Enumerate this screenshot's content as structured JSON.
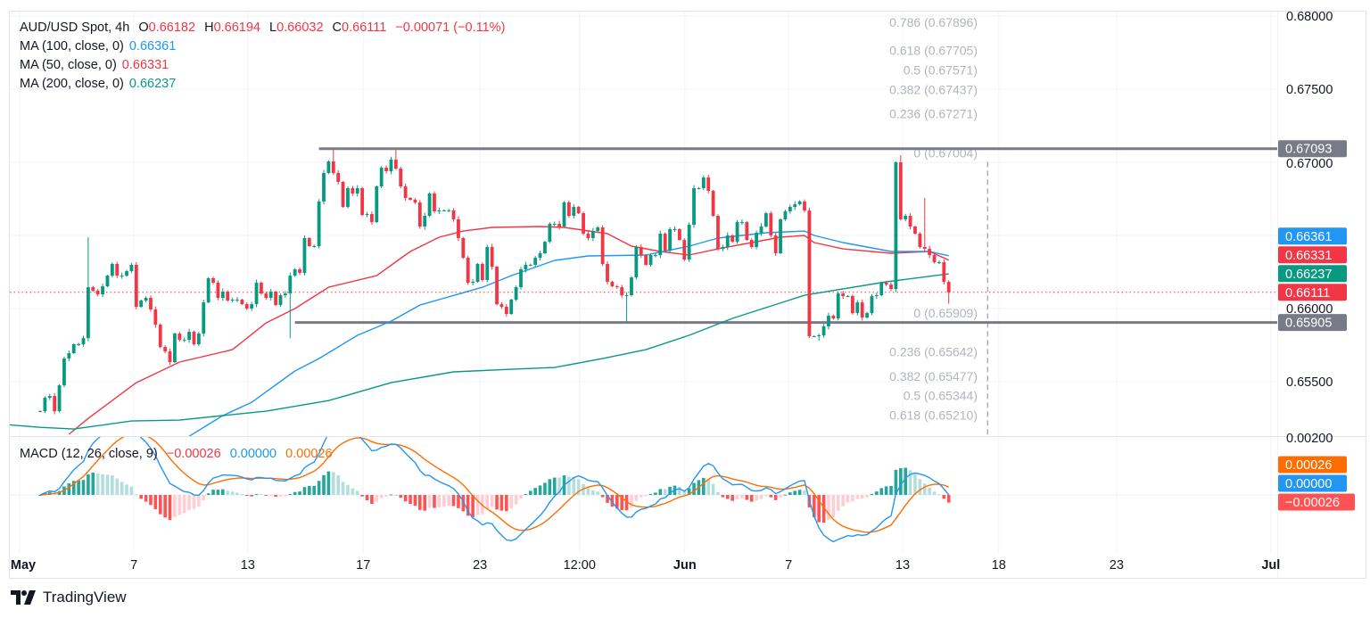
{
  "header": {
    "symbol": "AUD/USD Spot, 4h",
    "o_label": "O",
    "o": "0.66182",
    "h_label": "H",
    "h": "0.66194",
    "l_label": "L",
    "l": "0.66032",
    "c_label": "C",
    "c": "0.66111",
    "change": "−0.00071 (−0.11%)"
  },
  "indicators": [
    {
      "label": "MA (100, close, 0)",
      "value": "0.66361",
      "color": "#2196f3"
    },
    {
      "label": "MA (50, close, 0)",
      "value": "0.66331",
      "color": "#f23645"
    },
    {
      "label": "MA (200, close, 0)",
      "value": "0.66237",
      "color": "#089981"
    }
  ],
  "macd_legend": {
    "label": "MACD (12, 26, close, 9)",
    "hist": "−0.00026",
    "macd": "0.00000",
    "signal": "0.00026"
  },
  "footer": {
    "brand": "TradingView"
  },
  "colors": {
    "up": "#089981",
    "down": "#f23645",
    "ma100": "#2196f3",
    "ma50": "#f23645",
    "ma200": "#089981",
    "macd_line": "#2196f3",
    "signal_line": "#ff6d00",
    "hist_up_strong": "#26a69a",
    "hist_up_weak": "#b2dfdb",
    "hist_down_strong": "#ff5252",
    "hist_down_weak": "#ffcdd2",
    "level": "#787b86",
    "fib_text": "#b2b5be",
    "grid": "#f0f3fa",
    "border": "#e0e3eb"
  },
  "chart_data": {
    "type": "candlestick",
    "title": "AUD/USD Spot, 4h",
    "ylim": [
      0.65128,
      0.6811
    ],
    "y_ticks": [
      "0.68000",
      "0.67500",
      "0.67000",
      "0.66000",
      "0.65500"
    ],
    "y_grid": [
      0.68,
      0.675,
      0.67,
      0.665,
      0.66,
      0.655
    ],
    "x_ticks": [
      {
        "label": "May",
        "index": -4.3,
        "month": true
      },
      {
        "label": "7",
        "index": 19.5
      },
      {
        "label": "13",
        "index": 43.2
      },
      {
        "label": "17",
        "index": 67.2
      },
      {
        "label": "23",
        "index": 91.5
      },
      {
        "label": "12:00",
        "index": 112.2
      },
      {
        "label": "Jun",
        "index": 134.1,
        "month": true
      },
      {
        "label": "7",
        "index": 155.7
      },
      {
        "label": "13",
        "index": 179.4
      },
      {
        "label": "18",
        "index": 199.4
      },
      {
        "label": "23",
        "index": 223.9
      },
      {
        "label": "Jul",
        "index": 256,
        "month": true
      }
    ],
    "closes": [
      0.65298,
      0.6539,
      0.65402,
      0.65298,
      0.65475,
      0.65658,
      0.65695,
      0.65756,
      0.65756,
      0.65798,
      0.66146,
      0.66122,
      0.66097,
      0.66152,
      0.66225,
      0.66305,
      0.66225,
      0.66225,
      0.66256,
      0.66299,
      0.66012,
      0.66055,
      0.66073,
      0.65994,
      0.6589,
      0.65737,
      0.65707,
      0.65634,
      0.65829,
      0.65786,
      0.65786,
      0.65841,
      0.65756,
      0.65829,
      0.66042,
      0.66207,
      0.66177,
      0.66073,
      0.66116,
      0.66055,
      0.66061,
      0.66061,
      0.6603,
      0.66,
      0.6603,
      0.66177,
      0.66103,
      0.66073,
      0.66116,
      0.66024,
      0.66091,
      0.66103,
      0.66225,
      0.66268,
      0.66244,
      0.66482,
      0.66427,
      0.66427,
      0.66732,
      0.66927,
      0.67006,
      0.66927,
      0.66866,
      0.66695,
      0.66823,
      0.66787,
      0.66823,
      0.6664,
      0.66646,
      0.66591,
      0.66835,
      0.66963,
      0.66939,
      0.67018,
      0.66957,
      0.66835,
      0.66756,
      0.66744,
      0.66726,
      0.66561,
      0.66634,
      0.66787,
      0.66665,
      0.66671,
      0.66671,
      0.66671,
      0.6661,
      0.66482,
      0.66347,
      0.66177,
      0.66183,
      0.66305,
      0.66195,
      0.66421,
      0.66286,
      0.6603,
      0.66012,
      0.65963,
      0.66061,
      0.66146,
      0.66268,
      0.66299,
      0.66299,
      0.66347,
      0.66378,
      0.66457,
      0.66579,
      0.66579,
      0.66561,
      0.66726,
      0.66634,
      0.66695,
      0.66652,
      0.66512,
      0.66482,
      0.6653,
      0.66555,
      0.66305,
      0.66183,
      0.66152,
      0.66146,
      0.66091,
      0.66091,
      0.66213,
      0.66421,
      0.66366,
      0.66299,
      0.66366,
      0.66366,
      0.66512,
      0.66396,
      0.66543,
      0.66543,
      0.66469,
      0.66335,
      0.66573,
      0.66823,
      0.66823,
      0.66896,
      0.66805,
      0.66634,
      0.66408,
      0.66421,
      0.665,
      0.66457,
      0.66591,
      0.66591,
      0.66469,
      0.66421,
      0.66518,
      0.66561,
      0.66652,
      0.665,
      0.66378,
      0.6661,
      0.66665,
      0.66695,
      0.66713,
      0.66732,
      0.66671,
      0.65811,
      0.65811,
      0.65817,
      0.65878,
      0.65951,
      0.65933,
      0.66103,
      0.66085,
      0.66085,
      0.65969,
      0.66042,
      0.65939,
      0.65969,
      0.66085,
      0.66091,
      0.66177,
      0.66164,
      0.66134,
      0.67,
      0.6661,
      0.66634,
      0.66561,
      0.66512,
      0.66421,
      0.66408,
      0.66366,
      0.66317,
      0.66317,
      0.66183,
      0.66111
    ],
    "wick_extremes": [
      {
        "index": 10,
        "high": 0.66488
      },
      {
        "index": 52,
        "low": 0.65798
      },
      {
        "index": 61,
        "high": 0.67093
      },
      {
        "index": 74,
        "high": 0.67085
      },
      {
        "index": 122,
        "low": 0.65905
      },
      {
        "index": 160,
        "low": 0.65798
      },
      {
        "index": 162,
        "low": 0.6578
      },
      {
        "index": 178,
        "high": 0.67006
      },
      {
        "index": 179,
        "high": 0.67049
      },
      {
        "index": 184,
        "high": 0.66756
      }
    ],
    "last_candle": {
      "open": 0.66182,
      "high": 0.66194,
      "low": 0.66032,
      "close": 0.66111
    },
    "moving_averages": [
      {
        "name": "MA 50",
        "color_key": "ma50",
        "points": [
          [
            6,
            0.6514
          ],
          [
            10,
            0.65249
          ],
          [
            20,
            0.65493
          ],
          [
            29,
            0.65634
          ],
          [
            40,
            0.65719
          ],
          [
            47,
            0.65902
          ],
          [
            53,
            0.66
          ],
          [
            60,
            0.66146
          ],
          [
            70,
            0.66225
          ],
          [
            77,
            0.6639
          ],
          [
            83,
            0.66488
          ],
          [
            88,
            0.6653
          ],
          [
            94,
            0.66555
          ],
          [
            104,
            0.66561
          ],
          [
            109,
            0.66555
          ],
          [
            118,
            0.66512
          ],
          [
            123,
            0.66427
          ],
          [
            129,
            0.6639
          ],
          [
            135,
            0.66366
          ],
          [
            141,
            0.66408
          ],
          [
            148,
            0.66451
          ],
          [
            154,
            0.66488
          ],
          [
            159,
            0.665
          ],
          [
            161,
            0.66451
          ],
          [
            167,
            0.66408
          ],
          [
            177,
            0.66378
          ],
          [
            185,
            0.6639
          ],
          [
            189,
            0.66331
          ]
        ]
      },
      {
        "name": "MA 100",
        "color_key": "ma100",
        "points": [
          [
            31,
            0.65127
          ],
          [
            38,
            0.65268
          ],
          [
            44,
            0.65359
          ],
          [
            53,
            0.65573
          ],
          [
            58,
            0.65658
          ],
          [
            66,
            0.65817
          ],
          [
            73,
            0.65914
          ],
          [
            79,
            0.66024
          ],
          [
            92,
            0.66146
          ],
          [
            98,
            0.66225
          ],
          [
            107,
            0.66329
          ],
          [
            114,
            0.6636
          ],
          [
            126,
            0.66366
          ],
          [
            135,
            0.66427
          ],
          [
            141,
            0.66482
          ],
          [
            151,
            0.66518
          ],
          [
            159,
            0.6653
          ],
          [
            161,
            0.665
          ],
          [
            167,
            0.66451
          ],
          [
            177,
            0.6639
          ],
          [
            185,
            0.6639
          ],
          [
            189,
            0.66361
          ]
        ]
      },
      {
        "name": "MA 200",
        "color_key": "ma200",
        "points": [
          [
            -7,
            0.65207
          ],
          [
            0,
            0.65188
          ],
          [
            7,
            0.65176
          ],
          [
            19,
            0.65231
          ],
          [
            29,
            0.65237
          ],
          [
            38,
            0.65268
          ],
          [
            47,
            0.65298
          ],
          [
            60,
            0.65371
          ],
          [
            73,
            0.65493
          ],
          [
            86,
            0.65567
          ],
          [
            98,
            0.65585
          ],
          [
            107,
            0.65597
          ],
          [
            117,
            0.65658
          ],
          [
            126,
            0.65719
          ],
          [
            135,
            0.65817
          ],
          [
            144,
            0.65933
          ],
          [
            159,
            0.66091
          ],
          [
            176,
            0.66183
          ],
          [
            189,
            0.66237
          ]
        ]
      }
    ],
    "current_price": 0.66111,
    "levels": [
      {
        "price": 0.67093,
        "from_index": 58
      },
      {
        "price": 0.65905,
        "from_index": 53
      }
    ],
    "fib_end_index": 197,
    "fib_labels": [
      {
        "label": "0.786 (0.67896)",
        "price": 0.67896
      },
      {
        "label": "0.618 (0.67705)",
        "price": 0.67705
      },
      {
        "label": "0.5 (0.67571)",
        "price": 0.67571
      },
      {
        "label": "0.382 (0.67437)",
        "price": 0.67437
      },
      {
        "label": "0.236 (0.67271)",
        "price": 0.67271
      },
      {
        "label": "0 (0.67004)",
        "price": 0.67004
      },
      {
        "label": "0 (0.65909)",
        "price": 0.65909
      },
      {
        "label": "0.236 (0.65642)",
        "price": 0.65642
      },
      {
        "label": "0.382 (0.65477)",
        "price": 0.65477
      },
      {
        "label": "0.5 (0.65344)",
        "price": 0.65344
      },
      {
        "label": "0.618 (0.65210)",
        "price": 0.6521
      }
    ],
    "price_badges": [
      {
        "text": "0.67093",
        "price": 0.67093,
        "color": "#787b86"
      },
      {
        "text": "0.66361",
        "price": 0.66361,
        "color": "#2196f3"
      },
      {
        "text": "0.66331",
        "price": 0.66331,
        "color": "#f23645"
      },
      {
        "text": "0.66237",
        "price": 0.66237,
        "color": "#089981"
      },
      {
        "text": "0.66111",
        "price": 0.66111,
        "color": "#f23645"
      },
      {
        "text": "0.65905",
        "price": 0.65905,
        "color": "#787b86"
      }
    ],
    "macd": {
      "fast": 12,
      "slow": 26,
      "signal": 9,
      "axis_tick": "0.00200",
      "badges": [
        {
          "text": "0.00026",
          "color": "#ff6d00"
        },
        {
          "text": "0.00000",
          "color": "#2196f3"
        },
        {
          "text": "−0.00026",
          "color": "#ff5252"
        }
      ]
    }
  }
}
